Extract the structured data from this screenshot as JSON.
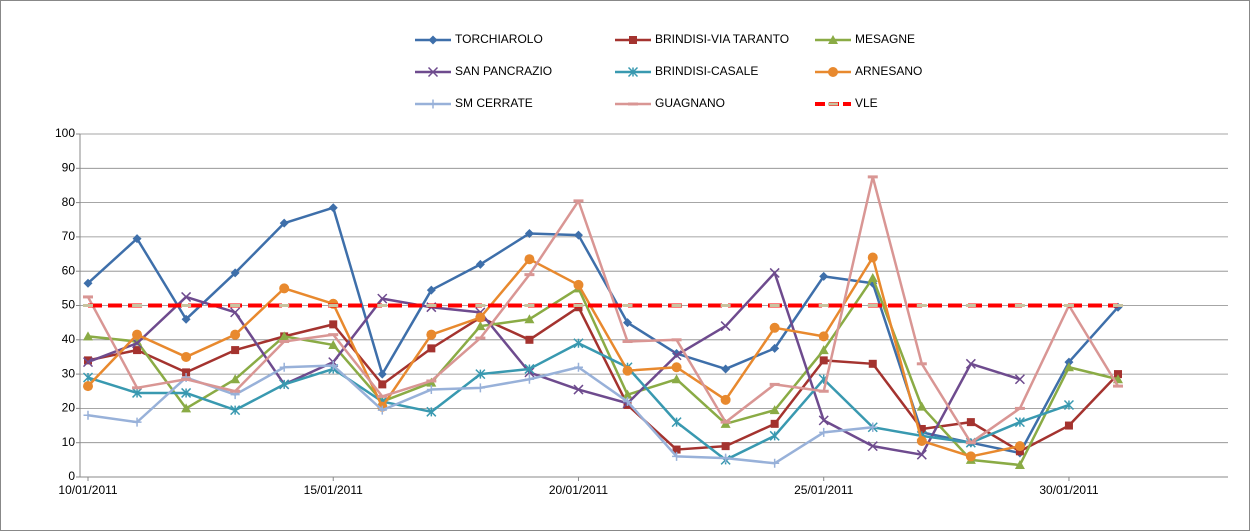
{
  "chart_data": {
    "type": "line",
    "categories": [
      "10/01/2011",
      null,
      null,
      null,
      null,
      "15/01/2011",
      null,
      null,
      null,
      null,
      "20/01/2011",
      null,
      null,
      null,
      null,
      "25/01/2011",
      null,
      null,
      null,
      null,
      "30/01/2011",
      null
    ],
    "ylim": [
      0,
      100
    ],
    "yticks": [
      0,
      10,
      20,
      30,
      40,
      50,
      60,
      70,
      80,
      90,
      100
    ],
    "grid": true,
    "series": [
      {
        "name": "TORCHIAROLO",
        "color": "#3e6faa",
        "marker": "diamond",
        "values": [
          56.5,
          69.5,
          46,
          59.5,
          74,
          78.5,
          30,
          54.5,
          62,
          71,
          70.5,
          45,
          36,
          31.5,
          37.5,
          58.5,
          56.5,
          13,
          10,
          7,
          33.5,
          49.5
        ]
      },
      {
        "name": "BRINDISI-VIA TARANTO",
        "color": "#a4332f",
        "marker": "square",
        "values": [
          34,
          37,
          30.5,
          37,
          41,
          44.5,
          27,
          37.5,
          46.5,
          40,
          49.5,
          21,
          8,
          9,
          15.5,
          34,
          33,
          14,
          16,
          7.5,
          15,
          30
        ]
      },
      {
        "name": "MESAGNE",
        "color": "#8aab45",
        "marker": "triangle",
        "values": [
          41,
          39.5,
          20,
          28.5,
          41,
          38.5,
          22,
          27.5,
          44,
          46,
          55,
          24,
          28.5,
          15.5,
          19.5,
          37,
          58,
          20.5,
          5,
          3.5,
          32,
          28.5
        ]
      },
      {
        "name": "SAN PANCRAZIO",
        "color": "#6e4b8e",
        "marker": "x",
        "values": [
          33.5,
          39,
          52.5,
          48,
          27,
          33.5,
          52,
          49.5,
          48,
          30.5,
          25.5,
          21.5,
          35.5,
          44,
          59.5,
          16.5,
          9,
          6.5,
          33,
          28.5,
          null,
          null
        ]
      },
      {
        "name": "BRINDISI-CASALE",
        "color": "#3999b0",
        "marker": "star",
        "values": [
          29,
          24.5,
          24.5,
          19.5,
          27,
          31.5,
          22,
          19,
          30,
          31.5,
          39,
          32,
          16,
          5,
          12,
          28.5,
          14.5,
          12,
          10,
          16,
          21,
          null
        ]
      },
      {
        "name": "ARNESANO",
        "color": "#e8892e",
        "marker": "circle",
        "values": [
          26.5,
          41.5,
          35,
          41.5,
          55,
          50.5,
          20.5,
          41.5,
          46.5,
          63.5,
          56,
          31,
          32,
          22.5,
          43.5,
          41,
          64,
          10.5,
          6,
          9,
          null,
          null
        ]
      },
      {
        "name": "SM CERRATE",
        "color": "#98b1d9",
        "marker": "plus",
        "values": [
          18,
          16,
          29,
          24,
          32,
          32.5,
          19.5,
          25.5,
          26,
          28.5,
          32,
          22,
          6,
          5.5,
          4,
          13,
          14.5,
          null,
          null,
          null,
          null,
          null
        ]
      },
      {
        "name": "GUAGNANO",
        "color": "#d99694",
        "marker": "dash",
        "values": [
          52.5,
          26,
          28.5,
          25,
          39.5,
          41.5,
          23.5,
          28,
          40.5,
          59,
          80.5,
          39.5,
          40,
          16,
          27,
          25,
          87.5,
          33,
          10,
          20,
          50,
          26.5
        ]
      },
      {
        "name": "VLE",
        "color": "#ff0000",
        "marker": "dash",
        "dashed": true,
        "values": [
          50,
          50,
          50,
          50,
          50,
          50,
          50,
          50,
          50,
          50,
          50,
          50,
          50,
          50,
          50,
          50,
          50,
          50,
          50,
          50,
          50,
          50
        ]
      }
    ]
  }
}
